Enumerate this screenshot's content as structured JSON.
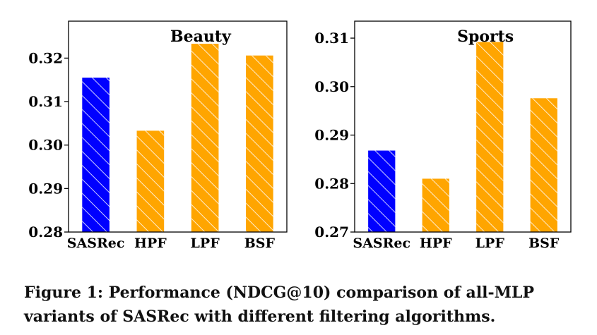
{
  "chart_data": [
    {
      "type": "bar",
      "title": "Beauty",
      "categories": [
        "SASRec",
        "HPF",
        "LPF",
        "BSF"
      ],
      "values": [
        0.3155,
        0.3033,
        0.3233,
        0.3206
      ],
      "ylim": [
        0.28,
        0.3285
      ],
      "yticks": [
        0.28,
        0.29,
        0.3,
        0.31,
        0.32
      ],
      "ytick_labels": [
        "0.28",
        "0.29",
        "0.30",
        "0.31",
        "0.32"
      ],
      "colors": [
        "#0000ff",
        "#ffa500",
        "#ffa500",
        "#ffa500"
      ],
      "hatch": "diagonal",
      "grid": false
    },
    {
      "type": "bar",
      "title": "Sports",
      "categories": [
        "SASRec",
        "HPF",
        "LPF",
        "BSF"
      ],
      "values": [
        0.2868,
        0.281,
        0.3092,
        0.2976
      ],
      "ylim": [
        0.27,
        0.3135
      ],
      "yticks": [
        0.27,
        0.28,
        0.29,
        0.3,
        0.31
      ],
      "ytick_labels": [
        "0.27",
        "0.28",
        "0.29",
        "0.30",
        "0.31"
      ],
      "colors": [
        "#0000ff",
        "#ffa500",
        "#ffa500",
        "#ffa500"
      ],
      "hatch": "diagonal",
      "grid": false
    }
  ],
  "caption": "Figure 1: Performance (NDCG@10) comparison of all-MLP variants of SASRec with different filtering algorithms."
}
